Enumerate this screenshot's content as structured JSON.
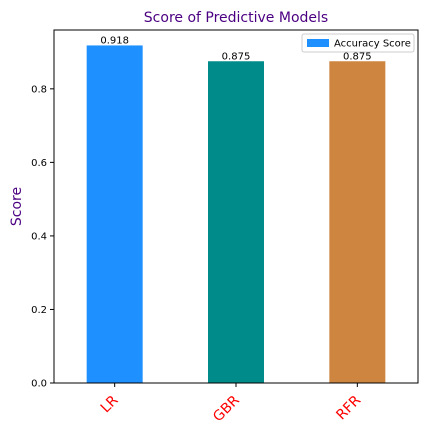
{
  "chart_data": {
    "type": "bar",
    "title": "Score of Predictive Models",
    "ylabel": "Score",
    "xlabel": "",
    "categories": [
      "LR",
      "GBR",
      "RFR"
    ],
    "series": [
      {
        "name": "Accuracy Score",
        "values": [
          0.918,
          0.875,
          0.875
        ],
        "labels": [
          "0.918",
          "0.875",
          "0.875"
        ]
      }
    ],
    "bar_colors": [
      "#1e90ff",
      "#008b8b",
      "#cd853f"
    ],
    "legend_color": "#1e90ff",
    "title_color": "#4b0082",
    "ylabel_color": "#4b0082",
    "category_label_color": "#ff0000",
    "ylim": [
      0,
      0.96
    ],
    "yticks": [
      "0.0",
      "0.2",
      "0.4",
      "0.6",
      "0.8"
    ],
    "legend_position": "upper right",
    "grid": false
  }
}
